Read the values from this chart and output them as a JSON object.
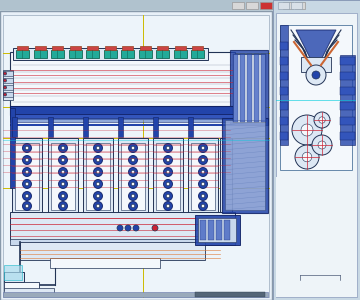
{
  "bg_outer": "#c0d0dc",
  "bg_titlebar": "#b8ccd8",
  "bg_main_drawing": "#e8f0f8",
  "bg_right_panel": "#c8d8e4",
  "bg_right_drawing": "#eef4f8",
  "engine_light": "#dde8f4",
  "engine_mid": "#c8d8ec",
  "outline_dark": "#223355",
  "outline_med": "#445577",
  "blue_fill": "#2244aa",
  "blue_mid": "#3355bb",
  "blue_light": "#6688cc",
  "blue_dark": "#112266",
  "red_line": "#cc2233",
  "teal_fill": "#22aa99",
  "teal_dark": "#116655",
  "cyan_line": "#00ccdd",
  "yellow_line": "#ccbb00",
  "orange_line": "#dd7733",
  "gray_fill": "#aabbcc",
  "white_fill": "#f4f8fc",
  "hatch_blue": "#4466aa"
}
